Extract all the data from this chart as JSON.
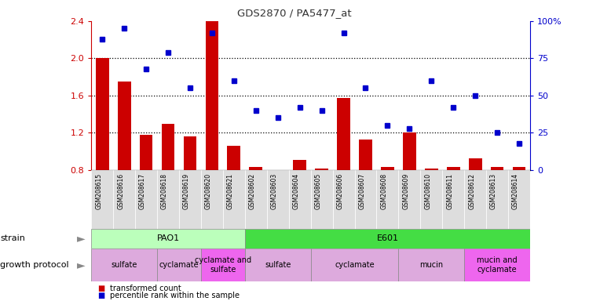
{
  "title": "GDS2870 / PA5477_at",
  "samples": [
    "GSM208615",
    "GSM208616",
    "GSM208617",
    "GSM208618",
    "GSM208619",
    "GSM208620",
    "GSM208621",
    "GSM208602",
    "GSM208603",
    "GSM208604",
    "GSM208605",
    "GSM208606",
    "GSM208607",
    "GSM208608",
    "GSM208609",
    "GSM208610",
    "GSM208611",
    "GSM208612",
    "GSM208613",
    "GSM208614"
  ],
  "red_values": [
    2.0,
    1.75,
    1.18,
    1.3,
    1.16,
    2.55,
    1.06,
    0.83,
    0.8,
    0.91,
    0.82,
    1.57,
    1.13,
    0.83,
    1.2,
    0.82,
    0.83,
    0.93,
    0.83,
    0.83
  ],
  "blue_values": [
    88,
    95,
    68,
    79,
    55,
    92,
    60,
    40,
    35,
    42,
    40,
    92,
    55,
    30,
    28,
    60,
    42,
    50,
    25,
    18
  ],
  "ylim_left": [
    0.8,
    2.4
  ],
  "ylim_right": [
    0,
    100
  ],
  "yticks_left": [
    0.8,
    1.2,
    1.6,
    2.0,
    2.4
  ],
  "yticks_right": [
    0,
    25,
    50,
    75,
    100
  ],
  "ytick_labels_right": [
    "0",
    "25",
    "50",
    "75",
    "100%"
  ],
  "grid_lines": [
    1.2,
    1.6,
    2.0
  ],
  "strain_groups": [
    {
      "label": "PAO1",
      "start": 0,
      "end": 6,
      "color": "#BBFFBB"
    },
    {
      "label": "E601",
      "start": 7,
      "end": 19,
      "color": "#44DD44"
    }
  ],
  "protocol_groups": [
    {
      "label": "sulfate",
      "start": 0,
      "end": 2,
      "color": "#DDAADD"
    },
    {
      "label": "cyclamate",
      "start": 3,
      "end": 4,
      "color": "#DDAADD"
    },
    {
      "label": "cyclamate and\nsulfate",
      "start": 5,
      "end": 6,
      "color": "#EE66EE"
    },
    {
      "label": "sulfate",
      "start": 7,
      "end": 9,
      "color": "#DDAADD"
    },
    {
      "label": "cyclamate",
      "start": 10,
      "end": 13,
      "color": "#DDAADD"
    },
    {
      "label": "mucin",
      "start": 14,
      "end": 16,
      "color": "#DDAADD"
    },
    {
      "label": "mucin and\ncyclamate",
      "start": 17,
      "end": 19,
      "color": "#EE66EE"
    }
  ],
  "bar_color": "#CC0000",
  "dot_color": "#0000CC",
  "background_color": "#ffffff",
  "xtick_bg_color": "#DDDDDD",
  "left_spine_color": "#CC0000",
  "right_spine_color": "#0000CC"
}
